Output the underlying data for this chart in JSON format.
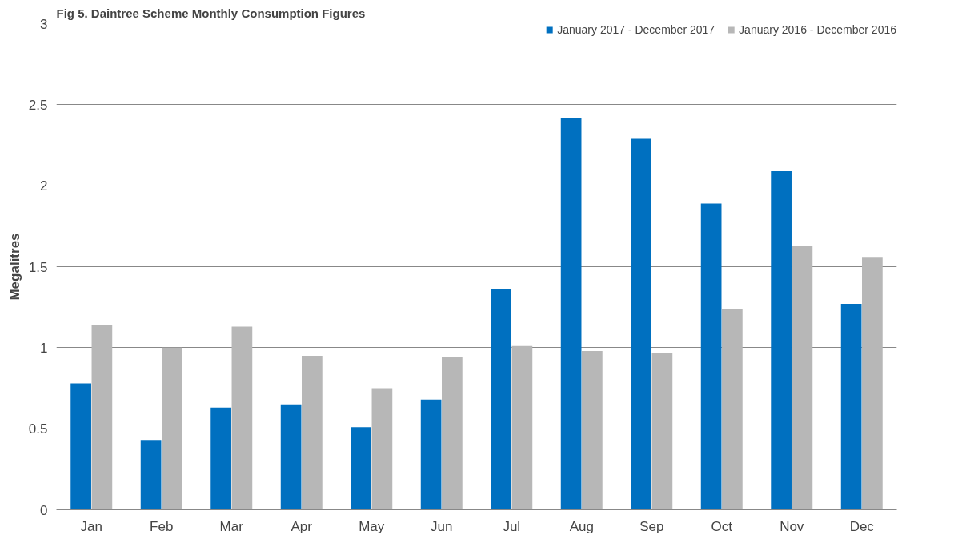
{
  "chart_data": {
    "type": "bar",
    "title": "Fig 5. Daintree Scheme Monthly Consumption Figures",
    "ylabel": "Megalitres",
    "categories": [
      "Jan",
      "Feb",
      "Mar",
      "Apr",
      "May",
      "Jun",
      "Jul",
      "Aug",
      "Sep",
      "Oct",
      "Nov",
      "Dec"
    ],
    "series": [
      {
        "name": "January 2017 - December 2017",
        "color": "#0070c0",
        "values": [
          0.78,
          0.43,
          0.63,
          0.65,
          0.51,
          0.68,
          1.36,
          2.42,
          2.29,
          1.89,
          2.09,
          1.27
        ]
      },
      {
        "name": "January 2016 - December 2016",
        "color": "#b7b7b7",
        "values": [
          1.14,
          1.0,
          1.13,
          0.95,
          0.75,
          0.94,
          1.01,
          0.98,
          0.97,
          1.24,
          1.63,
          1.56
        ]
      }
    ],
    "ylim": [
      0,
      3
    ],
    "yticks": [
      0,
      0.5,
      1,
      1.5,
      2,
      2.5,
      3
    ],
    "grid": "y",
    "legend": "top right"
  }
}
